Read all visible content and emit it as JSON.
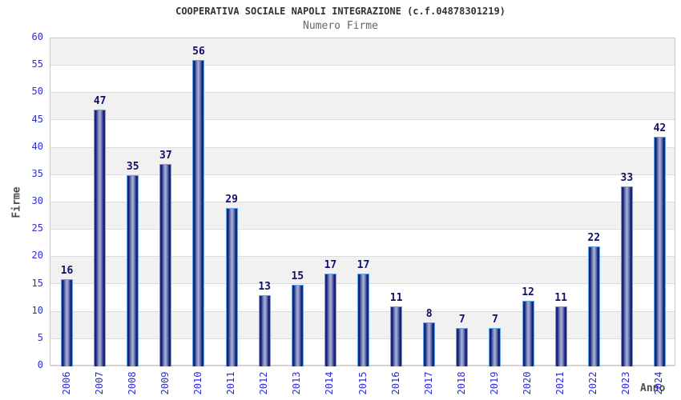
{
  "header": {
    "title": "COOPERATIVA SOCIALE NAPOLI INTEGRAZIONE (c.f.04878301219)",
    "subtitle": "Numero Firme"
  },
  "chart_data": {
    "type": "bar",
    "title": "COOPERATIVA SOCIALE NAPOLI INTEGRAZIONE (c.f.04878301219)",
    "subtitle": "Numero Firme",
    "xlabel": "Anno",
    "ylabel": "Firme",
    "categories": [
      "2006",
      "2007",
      "2008",
      "2009",
      "2010",
      "2011",
      "2012",
      "2013",
      "2014",
      "2015",
      "2016",
      "2017",
      "2018",
      "2019",
      "2020",
      "2021",
      "2022",
      "2023",
      "2024"
    ],
    "values": [
      16,
      47,
      35,
      37,
      56,
      29,
      13,
      15,
      17,
      17,
      11,
      8,
      7,
      7,
      12,
      11,
      22,
      33,
      42
    ],
    "ylim": [
      0,
      60
    ],
    "ytick_step": 5,
    "grid": "horizontal alternating bands every 5 units",
    "legend": "none",
    "bar_labels_shown": true
  },
  "colors": {
    "background": "#ffffff",
    "title": "#333333",
    "subtitle": "#666666",
    "axis_label": "#4d4d4d",
    "tick_label": "#2d2dd4",
    "value_label": "#10106a",
    "bar_dark": "#10196f",
    "bar_light": "#aab4de",
    "bar_border": "#62a4e8",
    "band_gray": "#f1f1f1",
    "grid_line": "#dcdcdc",
    "plot_border": "#c9c9c9"
  }
}
